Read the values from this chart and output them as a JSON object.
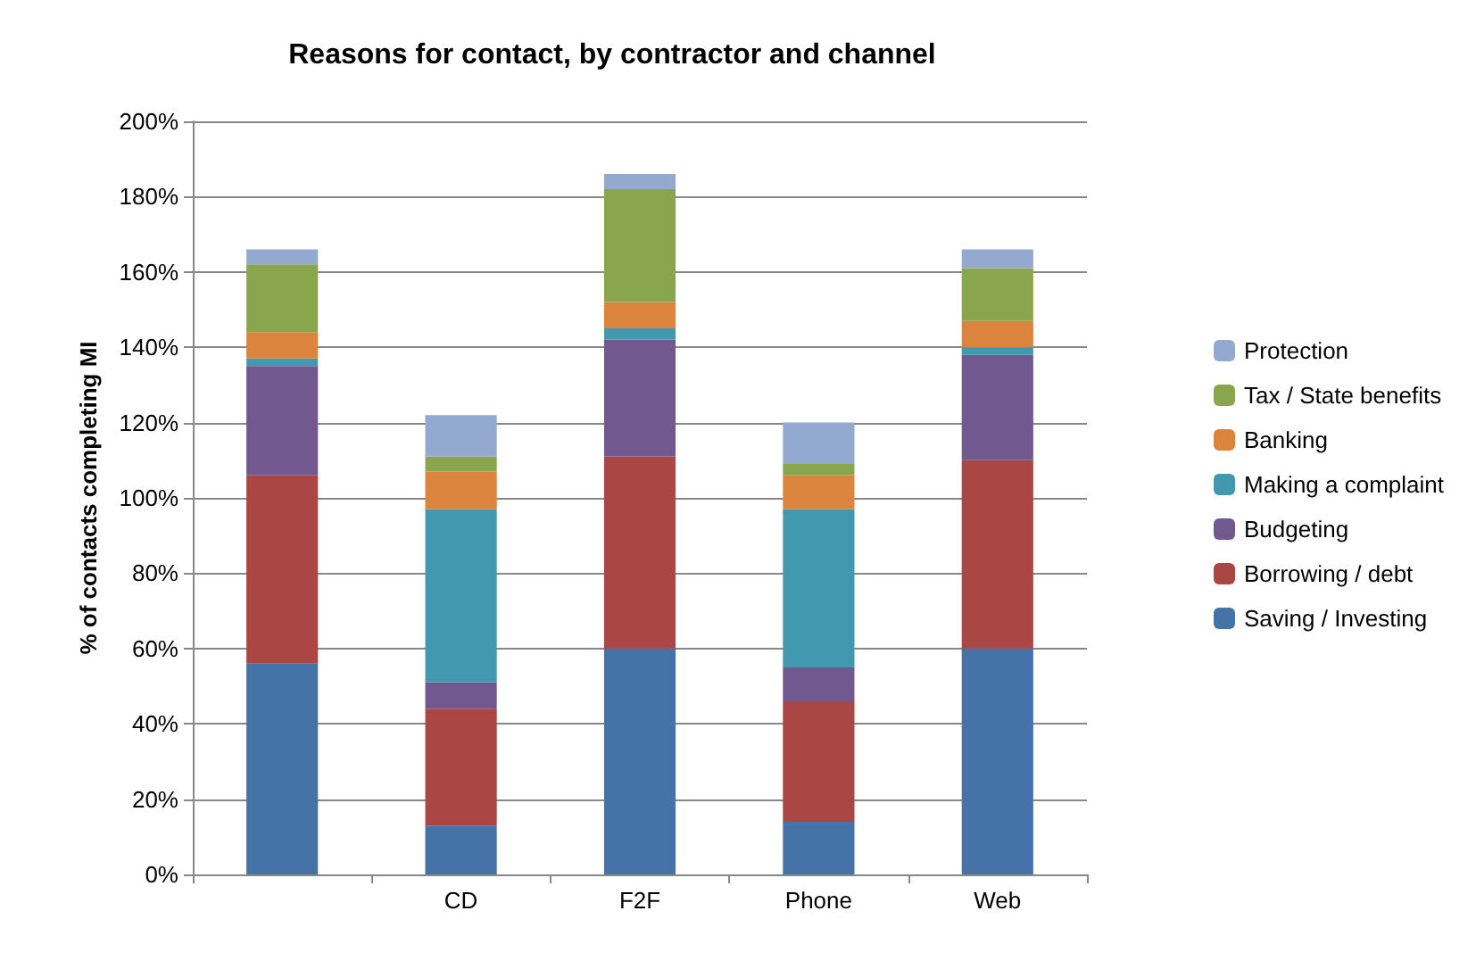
{
  "chart_data": {
    "type": "bar",
    "title": "Reasons for contact, by contractor and channel",
    "ylabel": "% of contacts completing MI",
    "categories": [
      null,
      "CD",
      "F2F",
      "Phone",
      "Web"
    ],
    "stacked": true,
    "ylim": [
      0,
      200
    ],
    "yticks": [
      {
        "value": 0,
        "label": "0%"
      },
      {
        "value": 20,
        "label": "20%"
      },
      {
        "value": 40,
        "label": "40%"
      },
      {
        "value": 60,
        "label": "60%"
      },
      {
        "value": 80,
        "label": "80%"
      },
      {
        "value": 100,
        "label": "100%"
      },
      {
        "value": 120,
        "label": "120%"
      },
      {
        "value": 140,
        "label": "140%"
      },
      {
        "value": 160,
        "label": "160%"
      },
      {
        "value": 180,
        "label": "180%"
      },
      {
        "value": 200,
        "label": "200%"
      }
    ],
    "grid": "y",
    "legend": "right",
    "series": [
      {
        "name": "Saving / Investing",
        "color": "#4572a7",
        "values": [
          56,
          13,
          60,
          14,
          60
        ]
      },
      {
        "name": "Borrowing / debt",
        "color": "#aa4643",
        "values": [
          50,
          31,
          51,
          32,
          50
        ]
      },
      {
        "name": "Budgeting",
        "color": "#71588f",
        "values": [
          29,
          7,
          31,
          9,
          28
        ]
      },
      {
        "name": "Making a complaint",
        "color": "#4198af",
        "values": [
          2,
          46,
          3,
          42,
          2
        ]
      },
      {
        "name": "Banking",
        "color": "#db843d",
        "values": [
          7,
          10,
          7,
          9,
          7
        ]
      },
      {
        "name": "Tax / State benefits",
        "color": "#89a54e",
        "values": [
          18,
          4,
          30,
          3,
          14
        ]
      },
      {
        "name": "Protection",
        "color": "#93a9cf",
        "values": [
          4,
          11,
          4,
          11,
          5
        ]
      }
    ]
  }
}
